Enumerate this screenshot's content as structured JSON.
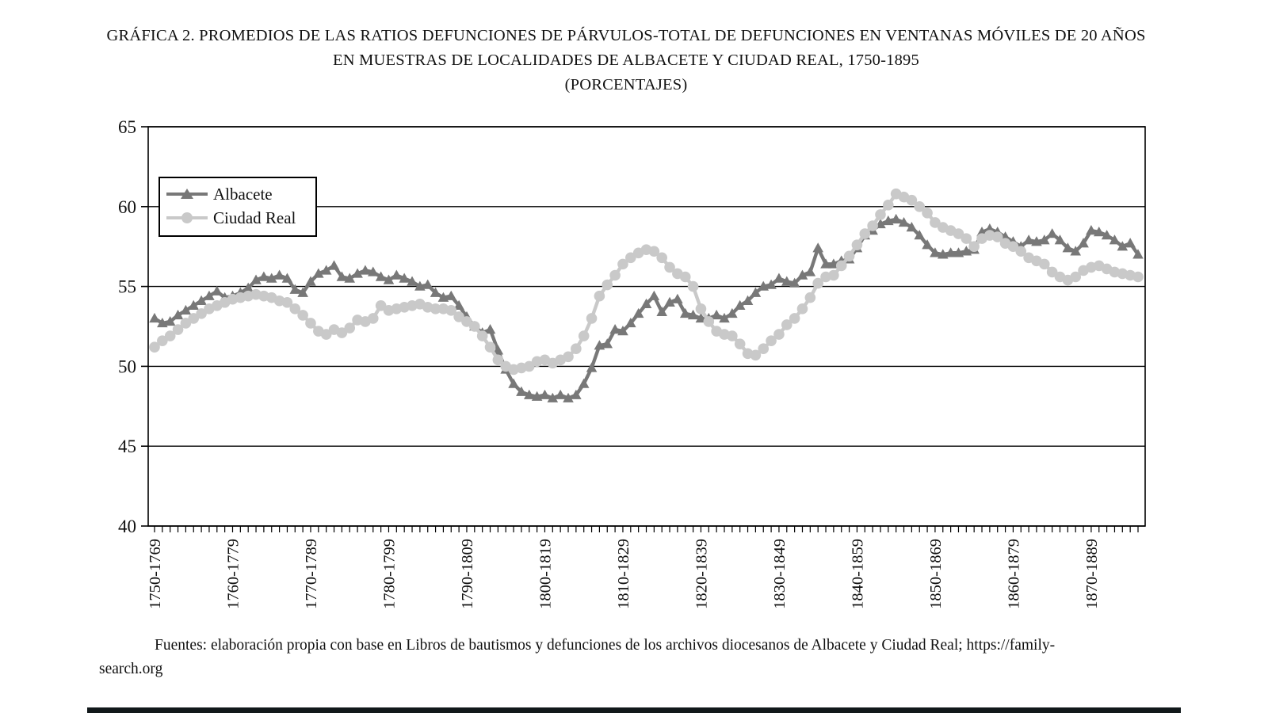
{
  "title": {
    "main": "GRÁFICA 2. PROMEDIOS DE LAS RATIOS DEFUNCIONES DE PÁRVULOS-TOTAL DE DEFUNCIONES EN VENTANAS MÓVILES DE 20 AÑOS EN MUESTRAS DE LOCALIDADES DE ALBACETE Y CIUDAD REAL, 1750-1895",
    "sub": "(PORCENTAJES)"
  },
  "legend": {
    "albacete_label": "Albacete",
    "ciudad_real_label": "Ciudad Real"
  },
  "source": {
    "line1": "Fuentes: elaboración propia con base en Libros de bautismos y defunciones de los archivos diocesanos de Albacete y Ciudad Real; https://family-",
    "line2": "search.org"
  },
  "colors": {
    "albacete": "#787878",
    "ciudad_real": "#c9c9c9",
    "axis": "#000000"
  },
  "chart_data": {
    "type": "line",
    "title": "GRÁFICA 2. PROMEDIOS DE LAS RATIOS DEFUNCIONES DE PÁRVULOS-TOTAL DE DEFUNCIONES EN VENTANAS MÓVILES DE 20 AÑOS EN MUESTRAS DE LOCALIDADES DE ALBACETE Y CIUDAD REAL, 1750-1895 (PORCENTAJES)",
    "xlabel": "",
    "ylabel": "",
    "ylim": [
      40,
      65
    ],
    "y_ticks": [
      40,
      45,
      50,
      55,
      60,
      65
    ],
    "grid": "horizontal",
    "legend_position": "top-left-inside",
    "x_window_start_year": 1750,
    "x_window_end_year": 1876,
    "x_tick_every": 10,
    "x_tick_labels": [
      "1750-1769",
      "1760-1779",
      "1770-1789",
      "1780-1799",
      "1790-1809",
      "1800-1819",
      "1810-1829",
      "1820-1839",
      "1830-1849",
      "1840-1859",
      "1850-1869",
      "1860-1879",
      "1870-1889"
    ],
    "series": [
      {
        "name": "Albacete",
        "color": "#787878",
        "marker": "triangle",
        "values": [
          53.0,
          52.7,
          52.8,
          53.2,
          53.5,
          53.8,
          54.1,
          54.4,
          54.7,
          54.3,
          54.4,
          54.6,
          54.9,
          55.4,
          55.6,
          55.5,
          55.7,
          55.5,
          54.8,
          54.6,
          55.3,
          55.8,
          56.0,
          56.3,
          55.6,
          55.5,
          55.8,
          56.0,
          55.9,
          55.6,
          55.4,
          55.7,
          55.5,
          55.3,
          55.0,
          55.1,
          54.6,
          54.3,
          54.4,
          53.8,
          53.1,
          52.5,
          52.1,
          52.3,
          51.0,
          49.8,
          48.9,
          48.4,
          48.2,
          48.1,
          48.2,
          48.0,
          48.2,
          48.0,
          48.2,
          48.9,
          49.9,
          51.3,
          51.4,
          52.3,
          52.2,
          52.7,
          53.3,
          53.9,
          54.4,
          53.4,
          54.0,
          54.2,
          53.3,
          53.2,
          53.0,
          53.0,
          53.2,
          53.0,
          53.3,
          53.8,
          54.1,
          54.6,
          55.0,
          55.1,
          55.5,
          55.3,
          55.2,
          55.7,
          55.9,
          57.4,
          56.4,
          56.4,
          56.6,
          56.7,
          57.4,
          58.2,
          58.5,
          58.9,
          59.1,
          59.2,
          59.0,
          58.7,
          58.2,
          57.6,
          57.1,
          57.0,
          57.1,
          57.1,
          57.2,
          57.3,
          58.4,
          58.6,
          58.4,
          58.1,
          57.8,
          57.5,
          57.9,
          57.8,
          57.9,
          58.3,
          57.9,
          57.4,
          57.2,
          57.7,
          58.5,
          58.4,
          58.2,
          57.9,
          57.5,
          57.7,
          57.0
        ]
      },
      {
        "name": "Ciudad Real",
        "color": "#c9c9c9",
        "marker": "circle",
        "values": [
          51.2,
          51.6,
          51.9,
          52.3,
          52.7,
          53.0,
          53.3,
          53.6,
          53.8,
          54.0,
          54.2,
          54.3,
          54.4,
          54.5,
          54.4,
          54.3,
          54.1,
          54.0,
          53.6,
          53.2,
          52.7,
          52.2,
          52.0,
          52.3,
          52.1,
          52.4,
          52.9,
          52.8,
          53.0,
          53.8,
          53.5,
          53.6,
          53.7,
          53.8,
          53.9,
          53.7,
          53.6,
          53.6,
          53.5,
          53.1,
          52.8,
          52.5,
          51.9,
          51.2,
          50.4,
          50.0,
          49.8,
          49.9,
          50.0,
          50.3,
          50.4,
          50.2,
          50.4,
          50.6,
          51.1,
          51.9,
          53.0,
          54.4,
          55.1,
          55.7,
          56.4,
          56.8,
          57.1,
          57.3,
          57.2,
          56.8,
          56.2,
          55.8,
          55.6,
          55.0,
          53.6,
          52.8,
          52.2,
          52.0,
          51.9,
          51.4,
          50.8,
          50.7,
          51.1,
          51.6,
          52.0,
          52.6,
          53.0,
          53.6,
          54.3,
          55.2,
          55.6,
          55.7,
          56.3,
          56.9,
          57.6,
          58.3,
          58.8,
          59.5,
          60.1,
          60.8,
          60.6,
          60.4,
          60.0,
          59.6,
          59.0,
          58.7,
          58.5,
          58.3,
          58.0,
          57.5,
          58.0,
          58.2,
          58.1,
          57.7,
          57.5,
          57.2,
          56.8,
          56.6,
          56.4,
          55.9,
          55.6,
          55.4,
          55.6,
          56.0,
          56.2,
          56.3,
          56.1,
          55.9,
          55.8,
          55.7,
          55.6
        ]
      }
    ]
  }
}
